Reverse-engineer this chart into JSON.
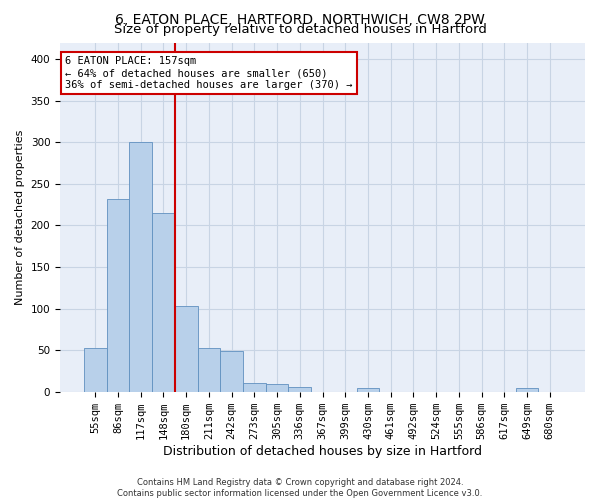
{
  "title": "6, EATON PLACE, HARTFORD, NORTHWICH, CW8 2PW",
  "subtitle": "Size of property relative to detached houses in Hartford",
  "xlabel": "Distribution of detached houses by size in Hartford",
  "ylabel": "Number of detached properties",
  "footer_line1": "Contains HM Land Registry data © Crown copyright and database right 2024.",
  "footer_line2": "Contains public sector information licensed under the Open Government Licence v3.0.",
  "bar_labels": [
    "55sqm",
    "86sqm",
    "117sqm",
    "148sqm",
    "180sqm",
    "211sqm",
    "242sqm",
    "273sqm",
    "305sqm",
    "336sqm",
    "367sqm",
    "399sqm",
    "430sqm",
    "461sqm",
    "492sqm",
    "524sqm",
    "555sqm",
    "586sqm",
    "617sqm",
    "649sqm",
    "680sqm"
  ],
  "bar_values": [
    52,
    232,
    300,
    215,
    103,
    52,
    49,
    10,
    9,
    6,
    0,
    0,
    5,
    0,
    0,
    0,
    0,
    0,
    0,
    4,
    0
  ],
  "bar_color": "#b8d0ea",
  "bar_edge_color": "#6090c0",
  "grid_color": "#c8d4e4",
  "background_color": "#e8eef8",
  "property_line_color": "#cc0000",
  "property_line_x": 3.5,
  "annotation_line1": "6 EATON PLACE: 157sqm",
  "annotation_line2": "← 64% of detached houses are smaller (650)",
  "annotation_line3": "36% of semi-detached houses are larger (370) →",
  "annotation_box_color": "#cc0000",
  "ylim": [
    0,
    420
  ],
  "yticks": [
    0,
    50,
    100,
    150,
    200,
    250,
    300,
    350,
    400
  ],
  "title_fontsize": 10,
  "subtitle_fontsize": 9.5,
  "xlabel_fontsize": 9,
  "ylabel_fontsize": 8,
  "tick_fontsize": 7.5,
  "annotation_fontsize": 7.5,
  "footer_fontsize": 6
}
